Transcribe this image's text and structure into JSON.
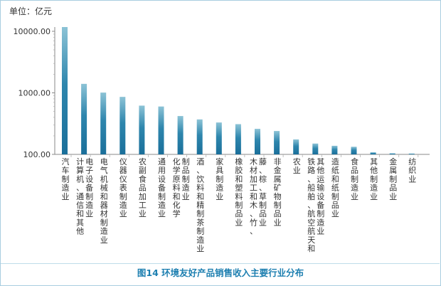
{
  "caption": "图14  环境友好产品销售收入主要行业分布",
  "colors": {
    "bar_top": "#8cc3d6",
    "bar_bottom": "#1a6f9a",
    "axis": "#8a8a8a",
    "caption": "#1d7fb0",
    "frame": "#a9cde0"
  },
  "chart_data": {
    "type": "bar",
    "title": "",
    "ylabel": "单位：亿元",
    "yscale": "log",
    "ylim": [
      100,
      12000
    ],
    "yticks": [
      100,
      1000,
      10000
    ],
    "ytick_labels": [
      "100.00",
      "1000.00",
      "10000.00"
    ],
    "grid": false,
    "categories": [
      "汽车制造业",
      "计算机、通信和其他电子设备制造业",
      "电气机械和器材制造业",
      "仪器仪表制造业",
      "农副食品加工业",
      "通用设备制造业",
      "化学原料和化学制品制造业",
      "酒、饮料和精制茶制造业",
      "家具制造业",
      "橡胶和塑料制品业",
      "木材加工和木、竹、藤、棕、草制品业",
      "非金属矿物制品业",
      "农业",
      "铁路、船舶、航空航天和其他运输设备制造业",
      "造纸和纸制品业",
      "食品制造业",
      "其他制造业",
      "金属制品业",
      "纺织业"
    ],
    "label_columns": [
      [
        "汽车制造业"
      ],
      [
        "计算机、通信和其他",
        "电子设备制造业"
      ],
      [
        "电气机械和器材制造业"
      ],
      [
        "仪器仪表制造业"
      ],
      [
        "农副食品加工业"
      ],
      [
        "通用设备制造业"
      ],
      [
        "化学原料和化学",
        "制品制造业"
      ],
      [
        "酒、饮料和精制茶制造业"
      ],
      [
        "家具制造业"
      ],
      [
        "橡胶和塑料制品业"
      ],
      [
        "木材加工和木、竹、",
        "藤、棕、草制品业"
      ],
      [
        "非金属矿物制品业"
      ],
      [
        "农业"
      ],
      [
        "铁路、船舶、航空航天和",
        "其他运输设备制造业"
      ],
      [
        "造纸和纸制品业"
      ],
      [
        "食品制造业"
      ],
      [
        "其他制造业"
      ],
      [
        "金属制品业"
      ],
      [
        "纺织业"
      ]
    ],
    "values": [
      11800,
      1400,
      1010,
      860,
      620,
      600,
      420,
      370,
      330,
      310,
      260,
      240,
      175,
      150,
      138,
      133,
      108,
      104,
      103
    ]
  }
}
